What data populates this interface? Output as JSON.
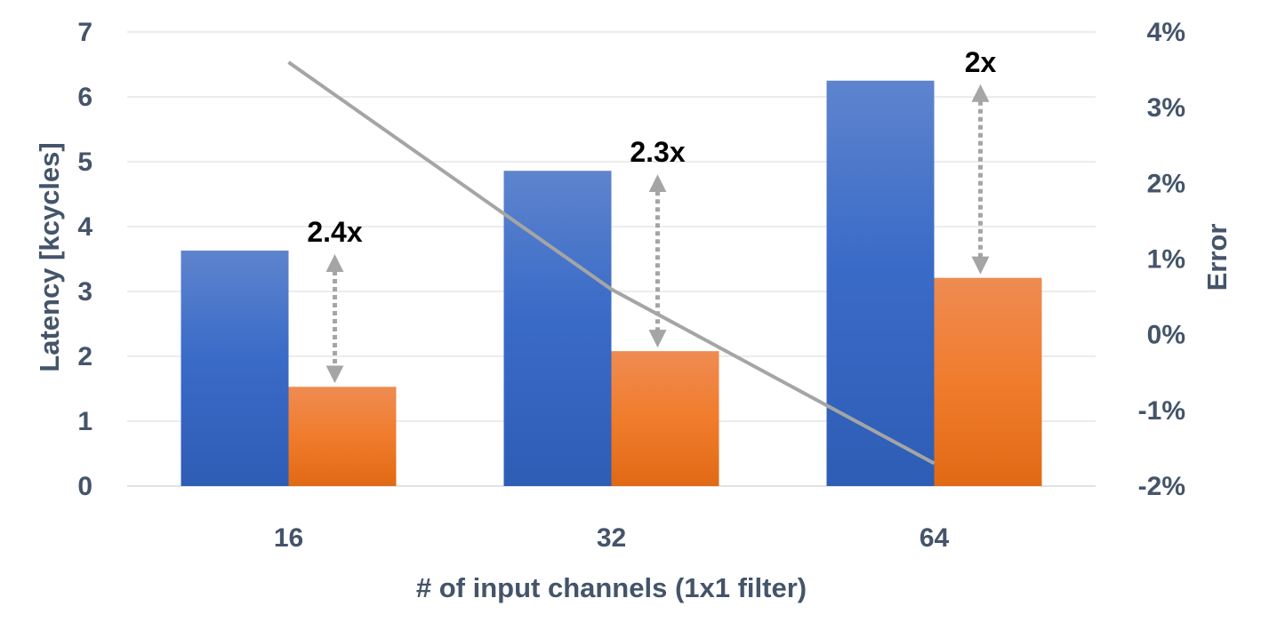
{
  "chart_data": {
    "type": "bar",
    "categories": [
      "16",
      "32",
      "64"
    ],
    "series": [
      {
        "values": [
          3.63,
          4.86,
          6.25
        ],
        "color": "#4472C4",
        "axis": "left"
      },
      {
        "values": [
          1.53,
          2.08,
          3.21
        ],
        "color": "#ED7D31",
        "axis": "left"
      }
    ],
    "line_series": [
      {
        "values": [
          3.6,
          0.6,
          -1.7
        ],
        "color": "#A5A5A5",
        "axis": "right"
      }
    ],
    "annotations": [
      {
        "category": "16",
        "label": "2.4x"
      },
      {
        "category": "32",
        "label": "2.3x"
      },
      {
        "category": "64",
        "label": "2x"
      }
    ],
    "xlabel": "# of input channels (1x1 filter)",
    "ylabel": "Latency [kcycles]",
    "y2label": "Error",
    "ylim": [
      0,
      7
    ],
    "yticks": [
      "0",
      "1",
      "2",
      "3",
      "4",
      "5",
      "6",
      "7"
    ],
    "y2lim": [
      -2,
      4
    ],
    "y2ticks": [
      "-2%",
      "-1%",
      "0%",
      "1%",
      "2%",
      "3%",
      "4%"
    ],
    "grid": true,
    "legend": "none"
  }
}
